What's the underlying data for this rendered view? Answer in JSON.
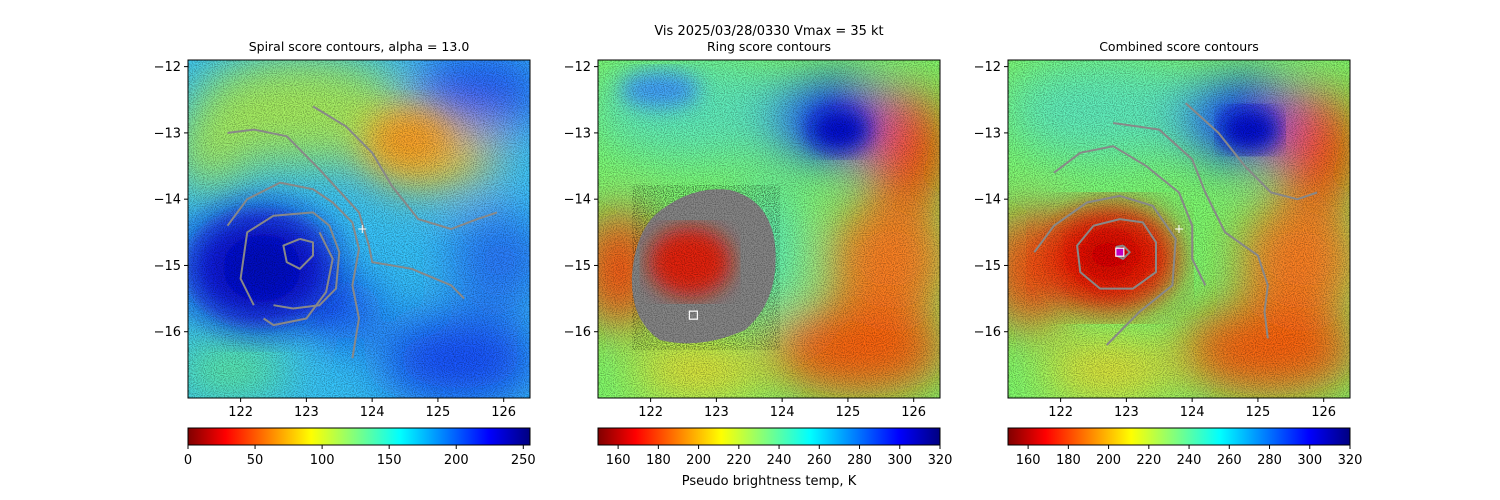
{
  "suptitle": "Vis  2025/03/28/0330    Vmax = 35 kt",
  "colorbar_label": "Pseudo brightness temp, K",
  "chart_data": [
    {
      "type": "heatmap",
      "title": "Spiral score contours, alpha = 13.0",
      "colormap": "jet_r",
      "xlim": [
        121.2,
        126.4
      ],
      "ylim": [
        -17,
        -11.9
      ],
      "xticks": [
        122,
        123,
        124,
        125,
        126
      ],
      "yticks": [
        -12,
        -13,
        -14,
        -15,
        -16
      ],
      "colorbar": {
        "range": [
          0,
          255
        ],
        "ticks": [
          0,
          50,
          100,
          150,
          200,
          250
        ]
      },
      "center_marker": {
        "x": 123.85,
        "y": -14.45,
        "symbol": "+"
      },
      "contours": [
        [
          [
            122.9,
            -14.6
          ],
          [
            123.1,
            -14.65
          ],
          [
            123.1,
            -14.85
          ],
          [
            122.9,
            -15.05
          ],
          [
            122.7,
            -14.95
          ],
          [
            122.65,
            -14.7
          ],
          [
            122.9,
            -14.6
          ]
        ],
        [
          [
            122.2,
            -15.6
          ],
          [
            122.0,
            -15.2
          ],
          [
            122.1,
            -14.5
          ],
          [
            122.5,
            -14.25
          ],
          [
            123.1,
            -14.2
          ],
          [
            123.35,
            -14.4
          ],
          [
            123.5,
            -14.8
          ],
          [
            123.45,
            -15.35
          ],
          [
            123.2,
            -15.6
          ],
          [
            122.8,
            -15.65
          ],
          [
            122.5,
            -15.6
          ]
        ],
        [
          [
            121.8,
            -14.4
          ],
          [
            122.1,
            -14.0
          ],
          [
            122.6,
            -13.75
          ],
          [
            123.1,
            -13.85
          ],
          [
            123.4,
            -14.05
          ],
          [
            123.7,
            -14.35
          ],
          [
            123.8,
            -14.75
          ],
          [
            123.7,
            -15.3
          ],
          [
            123.8,
            -15.8
          ],
          [
            123.7,
            -16.4
          ]
        ],
        [
          [
            123.2,
            -14.5
          ],
          [
            123.4,
            -14.9
          ],
          [
            123.3,
            -15.4
          ],
          [
            123.0,
            -15.8
          ],
          [
            122.5,
            -15.9
          ],
          [
            122.35,
            -15.8
          ]
        ],
        [
          [
            121.8,
            -13.0
          ],
          [
            122.2,
            -12.95
          ],
          [
            122.7,
            -13.05
          ],
          [
            123.2,
            -13.55
          ],
          [
            123.8,
            -14.2
          ],
          [
            123.95,
            -14.7
          ],
          [
            124.0,
            -14.95
          ],
          [
            124.6,
            -15.05
          ],
          [
            125.2,
            -15.3
          ],
          [
            125.4,
            -15.5
          ]
        ],
        [
          [
            123.1,
            -12.6
          ],
          [
            123.6,
            -12.9
          ],
          [
            124.0,
            -13.3
          ],
          [
            124.3,
            -13.8
          ],
          [
            124.7,
            -14.3
          ],
          [
            125.2,
            -14.45
          ],
          [
            125.6,
            -14.3
          ],
          [
            125.9,
            -14.2
          ]
        ]
      ]
    },
    {
      "type": "heatmap",
      "title": "Ring score contours",
      "colormap": "jet_r",
      "xlim": [
        121.2,
        126.4
      ],
      "ylim": [
        -17,
        -11.9
      ],
      "xticks": [
        122,
        123,
        124,
        125,
        126
      ],
      "yticks": [
        -12,
        -13,
        -14,
        -15,
        -16
      ],
      "colorbar": {
        "range": [
          150,
          320
        ],
        "ticks": [
          160,
          180,
          200,
          220,
          240,
          260,
          280,
          300,
          320
        ]
      },
      "square_marker": {
        "x": 122.65,
        "y": -15.75
      },
      "ring_region": {
        "x_range": [
          121.7,
          124.0
        ],
        "y_range": [
          -16.15,
          -13.8
        ]
      }
    },
    {
      "type": "heatmap",
      "title": "Combined score contours",
      "colormap": "jet_r",
      "xlim": [
        121.2,
        126.4
      ],
      "ylim": [
        -17,
        -11.9
      ],
      "xticks": [
        122,
        123,
        124,
        125,
        126
      ],
      "yticks": [
        -12,
        -13,
        -14,
        -15,
        -16
      ],
      "colorbar": {
        "range": [
          150,
          320
        ],
        "ticks": [
          160,
          180,
          200,
          220,
          240,
          260,
          280,
          300,
          320
        ]
      },
      "center_marker": {
        "x": 123.8,
        "y": -14.45,
        "symbol": "+"
      },
      "square_marker": {
        "x": 122.9,
        "y": -14.8
      },
      "contours": [
        [
          [
            122.95,
            -14.7
          ],
          [
            123.05,
            -14.8
          ],
          [
            122.95,
            -14.9
          ],
          [
            122.85,
            -14.85
          ],
          [
            122.85,
            -14.72
          ],
          [
            122.95,
            -14.7
          ]
        ],
        [
          [
            122.5,
            -14.4
          ],
          [
            122.9,
            -14.3
          ],
          [
            123.25,
            -14.35
          ],
          [
            123.45,
            -14.65
          ],
          [
            123.45,
            -15.1
          ],
          [
            123.1,
            -15.35
          ],
          [
            122.6,
            -15.35
          ],
          [
            122.3,
            -15.1
          ],
          [
            122.25,
            -14.7
          ],
          [
            122.5,
            -14.4
          ]
        ],
        [
          [
            121.6,
            -14.8
          ],
          [
            121.9,
            -14.4
          ],
          [
            122.4,
            -14.05
          ],
          [
            122.9,
            -13.95
          ],
          [
            123.4,
            -14.1
          ],
          [
            123.75,
            -14.6
          ],
          [
            123.7,
            -15.3
          ],
          [
            123.2,
            -15.7
          ],
          [
            122.7,
            -16.2
          ]
        ],
        [
          [
            121.9,
            -13.6
          ],
          [
            122.3,
            -13.3
          ],
          [
            122.8,
            -13.2
          ],
          [
            123.3,
            -13.5
          ],
          [
            123.8,
            -13.9
          ],
          [
            124.0,
            -14.4
          ],
          [
            124.0,
            -14.9
          ],
          [
            124.2,
            -15.3
          ]
        ],
        [
          [
            122.8,
            -12.85
          ],
          [
            123.5,
            -12.95
          ],
          [
            124.0,
            -13.4
          ],
          [
            124.2,
            -13.9
          ],
          [
            124.5,
            -14.5
          ],
          [
            125.0,
            -14.85
          ],
          [
            125.15,
            -15.3
          ],
          [
            125.1,
            -15.7
          ],
          [
            125.15,
            -16.1
          ]
        ],
        [
          [
            123.9,
            -12.55
          ],
          [
            124.4,
            -13.0
          ],
          [
            124.8,
            -13.5
          ],
          [
            125.2,
            -13.9
          ],
          [
            125.6,
            -14.0
          ],
          [
            125.9,
            -13.9
          ]
        ]
      ]
    }
  ]
}
